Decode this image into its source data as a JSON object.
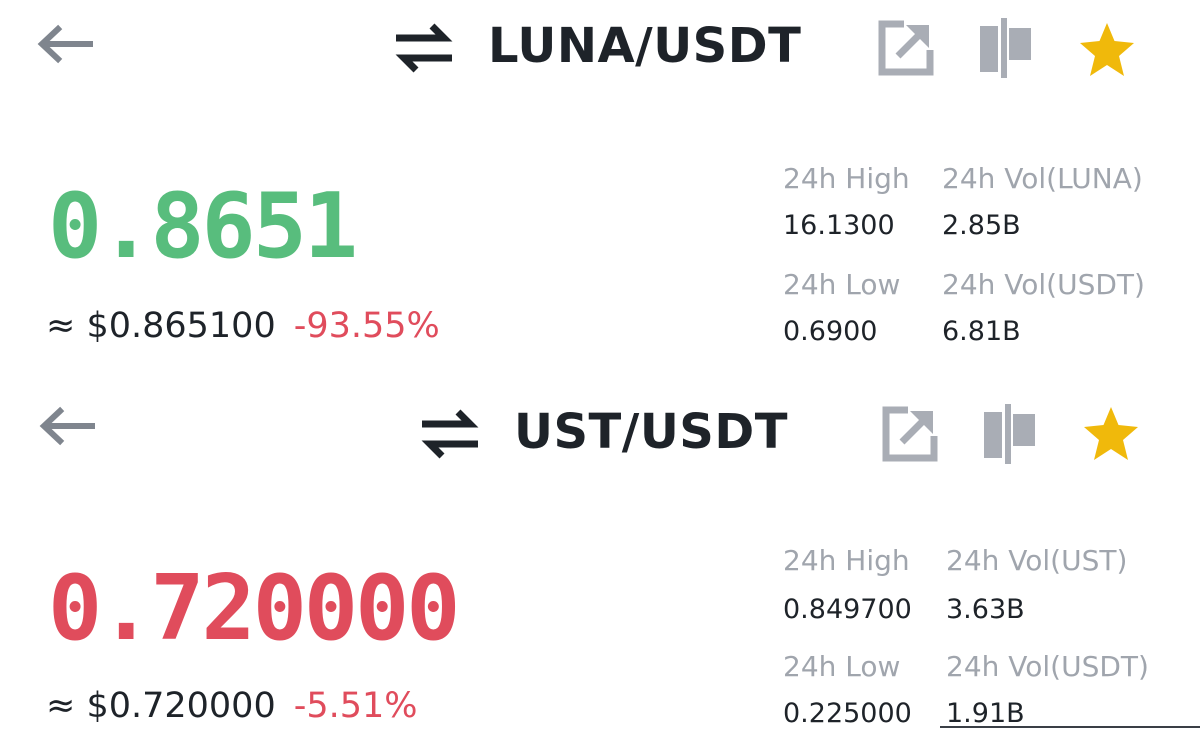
{
  "colors": {
    "up": "#58bd7d",
    "down": "#e04c5c",
    "text": "#1e2329",
    "muted": "#a0a5ad",
    "star": "#f0b90b",
    "icon_gray": "#a9adb5"
  },
  "pairs": [
    {
      "symbol": "LUNA/USDT",
      "price": "0.8651",
      "price_direction": "up",
      "approx_usd": "≈ $0.865100",
      "change": "-93.55%",
      "favorited": true,
      "stats": {
        "high_label": "24h High",
        "high_value": "16.1300",
        "low_label": "24h Low",
        "low_value": "0.6900",
        "vol_base_label": "24h Vol(LUNA)",
        "vol_base_value": "2.85B",
        "vol_quote_label": "24h Vol(USDT)",
        "vol_quote_value": "6.81B"
      }
    },
    {
      "symbol": "UST/USDT",
      "price": "0.720000",
      "price_direction": "down",
      "approx_usd": "≈ $0.720000",
      "change": "-5.51%",
      "favorited": true,
      "stats": {
        "high_label": "24h High",
        "high_value": "0.849700",
        "low_label": "24h Low",
        "low_value": "0.225000",
        "vol_base_label": "24h Vol(UST)",
        "vol_base_value": "3.63B",
        "vol_quote_label": "24h Vol(USDT)",
        "vol_quote_value": "1.91B"
      }
    }
  ],
  "icons": {
    "back": "arrow-left-icon",
    "swap": "swap-arrows-icon",
    "external": "external-link-icon",
    "chart": "candlestick-icon",
    "favorite": "star-icon"
  }
}
